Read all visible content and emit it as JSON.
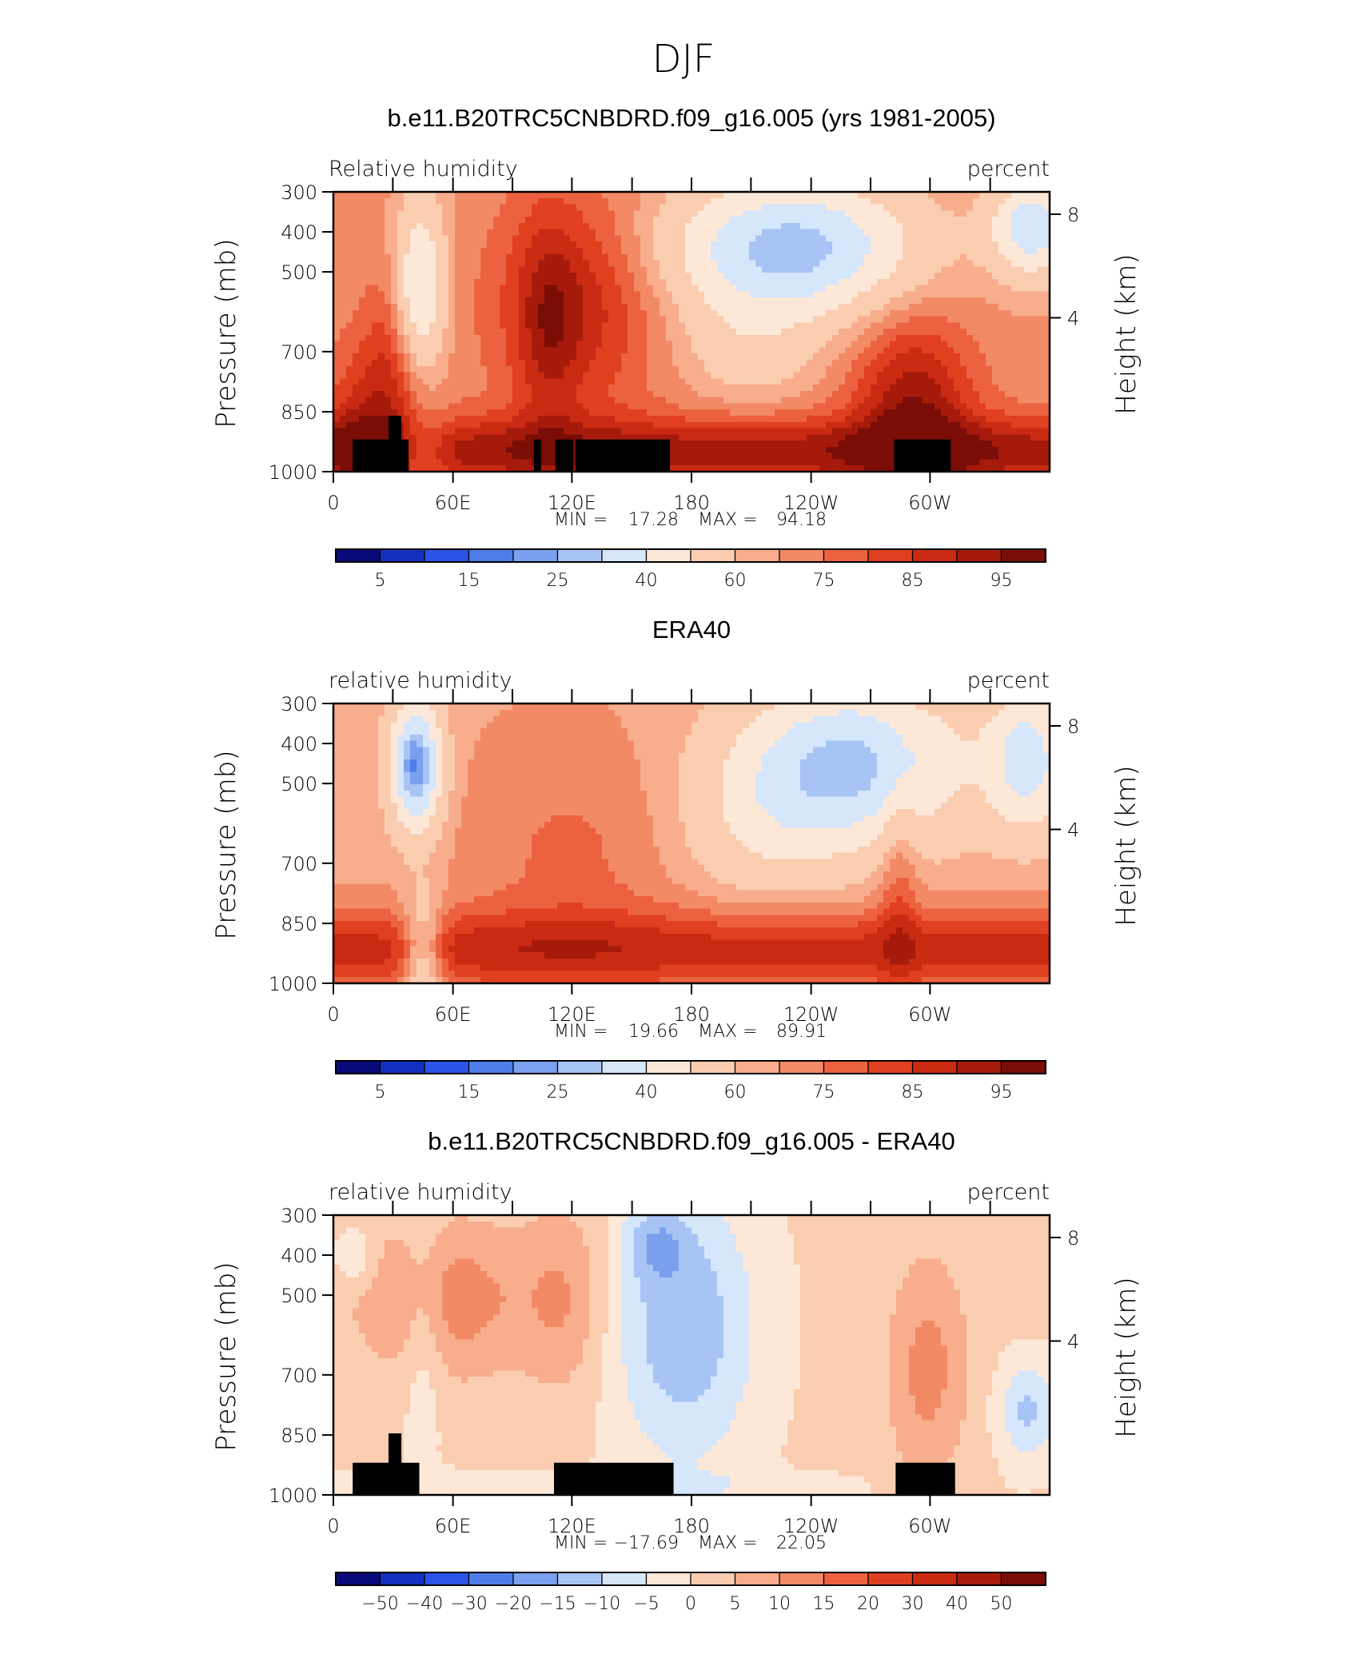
{
  "figure_title": "DJF",
  "chart_data": [
    {
      "type": "heatmap",
      "title": "b.e11.B20TRC5CNBDRD.f09_g16.005 (yrs 1981-2005)",
      "left_label": "Relative humidity",
      "right_label": "percent",
      "xlabel": "",
      "ylabel": "Pressure (mb)",
      "y2label": "Height (km)",
      "x_ticks": [
        "0",
        "60E",
        "120E",
        "180",
        "120W",
        "60W"
      ],
      "y_ticks": [
        "300",
        "400",
        "500",
        "700",
        "850",
        "1000"
      ],
      "y2_ticks": [
        "8",
        "4"
      ],
      "stats": {
        "min_label": "MIN =",
        "min": "17.28",
        "max_label": "MAX =",
        "max": "94.18"
      },
      "colorbar_labels": [
        "5",
        "15",
        "25",
        "40",
        "60",
        "75",
        "85",
        "95"
      ],
      "contour_levels": [
        5,
        10,
        15,
        20,
        25,
        30,
        40,
        50,
        60,
        65,
        70,
        75,
        80,
        85,
        90,
        95
      ],
      "variant": "model"
    },
    {
      "type": "heatmap",
      "title": "ERA40",
      "left_label": "relative humidity",
      "right_label": "percent",
      "xlabel": "",
      "ylabel": "Pressure (mb)",
      "y2label": "Height (km)",
      "x_ticks": [
        "0",
        "60E",
        "120E",
        "180",
        "120W",
        "60W"
      ],
      "y_ticks": [
        "300",
        "400",
        "500",
        "700",
        "850",
        "1000"
      ],
      "y2_ticks": [
        "8",
        "4"
      ],
      "stats": {
        "min_label": "MIN =",
        "min": "19.66",
        "max_label": "MAX =",
        "max": "89.91"
      },
      "colorbar_labels": [
        "5",
        "15",
        "25",
        "40",
        "60",
        "75",
        "85",
        "95"
      ],
      "contour_levels": [
        5,
        10,
        15,
        20,
        25,
        30,
        40,
        50,
        60,
        65,
        70,
        75,
        80,
        85,
        90,
        95
      ],
      "variant": "obs"
    },
    {
      "type": "heatmap",
      "title": "b.e11.B20TRC5CNBDRD.f09_g16.005 - ERA40",
      "left_label": "relative humidity",
      "right_label": "percent",
      "xlabel": "",
      "ylabel": "Pressure (mb)",
      "y2label": "Height (km)",
      "x_ticks": [
        "0",
        "60E",
        "120E",
        "180",
        "120W",
        "60W"
      ],
      "y_ticks": [
        "300",
        "400",
        "500",
        "700",
        "850",
        "1000"
      ],
      "y2_ticks": [
        "8",
        "4"
      ],
      "stats": {
        "min_label": "MIN =",
        "min": "−17.69",
        "max_label": "MAX =",
        "max": "22.05"
      },
      "colorbar_labels": [
        "−50",
        "−40",
        "−30",
        "−20",
        "−15",
        "−10",
        "−5",
        "0",
        "5",
        "10",
        "15",
        "20",
        "30",
        "40",
        "50"
      ],
      "contour_levels": [
        -50,
        -40,
        -30,
        -20,
        -15,
        -10,
        -5,
        0,
        5,
        10,
        15,
        20,
        30,
        40,
        50
      ],
      "variant": "diff"
    }
  ],
  "palette": [
    "#0a0a7a",
    "#1530c0",
    "#2b54e6",
    "#4f7de8",
    "#7aa0ee",
    "#a8c4f4",
    "#d6e6fb",
    "#fde8d8",
    "#fbcdb0",
    "#f8ad8d",
    "#f38a66",
    "#ec6240",
    "#e0401f",
    "#c92a12",
    "#a61a0c",
    "#7a0d06"
  ]
}
